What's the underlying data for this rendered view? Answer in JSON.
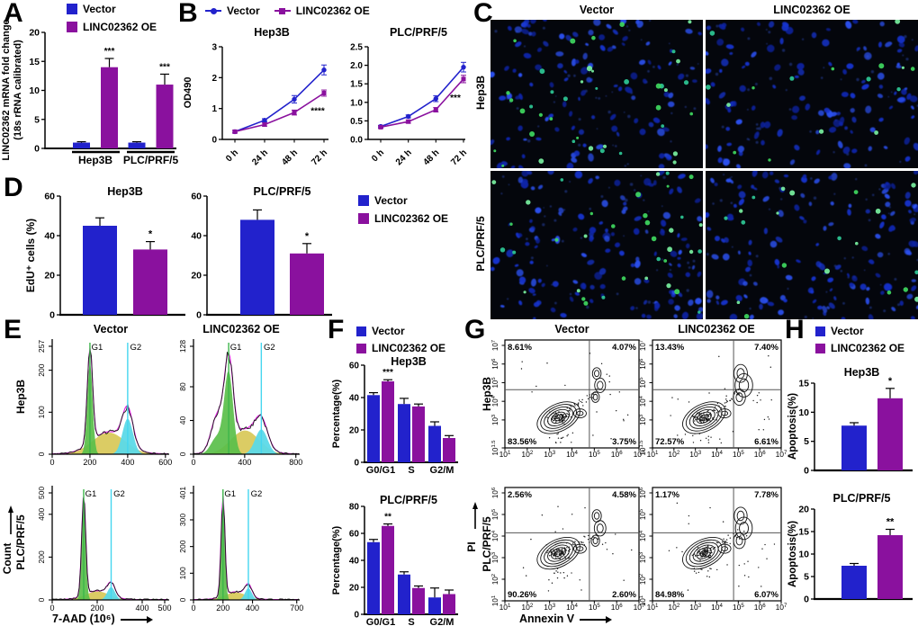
{
  "legend": {
    "vector": "Vector",
    "oe": "LINC02362 OE"
  },
  "colors": {
    "vector": "#2222cc",
    "oe": "#8a119e",
    "hist_g1_fill": "#5abf4a",
    "hist_s_fill": "#d9c95c",
    "hist_g2_fill": "#5cd9e8",
    "hist_model": "#e31ae3",
    "hist_trace": "#1a1a1a",
    "g1_marker_line": "#3cb54a",
    "g2_marker_line": "#45d6ef",
    "micro_bg": "#04060c",
    "nuclei": [
      "#1633cc",
      "#2b50ee",
      "#0e24a8",
      "#3a62f5"
    ],
    "edu": [
      "#3fd860",
      "#78f0a0",
      "#2ec896"
    ]
  },
  "panelA": {
    "label": "A",
    "ylabel1": "LINC02362 mRNA fold change",
    "ylabel2": "(18s rRNA calibrated)"
  },
  "panelB": {
    "label": "B",
    "ylabel": "OD490"
  },
  "panelC": {
    "label": "C",
    "cols": [
      "Vector",
      "LINC02362 OE"
    ],
    "rows": [
      "Hep3B",
      "PLC/PRF/5"
    ],
    "cells": [
      {
        "row": "Hep3B",
        "col": "Vector",
        "nuclei": 115,
        "edu": 40
      },
      {
        "row": "Hep3B",
        "col": "LINC02362 OE",
        "nuclei": 120,
        "edu": 16
      },
      {
        "row": "PLC/PRF/5",
        "col": "Vector",
        "nuclei": 135,
        "edu": 36
      },
      {
        "row": "PLC/PRF/5",
        "col": "LINC02362 OE",
        "nuclei": 140,
        "edu": 20
      }
    ]
  },
  "panelD": {
    "label": "D",
    "ylabel": "EdU⁺ cells (%)"
  },
  "panelE": {
    "label": "E",
    "cols": [
      "Vector",
      "LINC02362 OE"
    ],
    "rows": [
      "Hep3B",
      "PLC/PRF/5"
    ],
    "xlabel": "7-AAD (10⁶)",
    "ylabel": "Count",
    "phase_labels": [
      "G1",
      "G2"
    ]
  },
  "panelF": {
    "label": "F",
    "ylabel": "Percentage(%)"
  },
  "panelG": {
    "label": "G",
    "cols": [
      "Vector",
      "LINC02362 OE"
    ],
    "rows": [
      "Hep3B",
      "PLC/PRF/5"
    ],
    "xlabel": "Annexin V",
    "ylabel": "PI"
  },
  "panelH": {
    "label": "H",
    "ylabel": "Apoptosis(%)"
  },
  "chart_data": [
    {
      "id": "A-qpcr",
      "type": "bar",
      "panel": "A",
      "ylabel": "LINC02362 mRNA fold change (18s rRNA calibrated)",
      "categories": [
        "Hep3B",
        "PLC/PRF/5"
      ],
      "series": [
        {
          "name": "Vector",
          "values": [
            1,
            1
          ],
          "errors": [
            0.15,
            0.15
          ]
        },
        {
          "name": "LINC02362 OE",
          "values": [
            14,
            11
          ],
          "errors": [
            1.5,
            1.8
          ]
        }
      ],
      "ylim": [
        0,
        20
      ],
      "yticks": [
        0,
        5,
        10,
        15,
        20
      ],
      "significance": [
        {
          "category": "Hep3B",
          "category_index": 0,
          "series": "LINC02362 OE",
          "mark": "***"
        },
        {
          "category": "PLC/PRF/5",
          "category_index": 1,
          "series": "LINC02362 OE",
          "mark": "***"
        }
      ]
    },
    {
      "id": "B-hep3b",
      "type": "line",
      "panel": "B",
      "title": "Hep3B",
      "ylabel": "OD490",
      "x": [
        "0 h",
        "24 h",
        "48 h",
        "72 h"
      ],
      "series": [
        {
          "name": "Vector",
          "values": [
            0.25,
            0.62,
            1.3,
            2.25
          ],
          "errors": [
            0.04,
            0.05,
            0.12,
            0.16
          ]
        },
        {
          "name": "LINC02362 OE",
          "values": [
            0.25,
            0.48,
            0.87,
            1.5
          ],
          "errors": [
            0.04,
            0.05,
            0.08,
            0.1
          ]
        }
      ],
      "ylim": [
        0,
        3
      ],
      "yticks": [
        0,
        1,
        2,
        3
      ],
      "ytick_decimals": 0,
      "significance": {
        "mark": "****",
        "at": "72 h"
      }
    },
    {
      "id": "B-plc",
      "type": "line",
      "panel": "B",
      "title": "PLC/PRF/5",
      "ylabel": "OD490",
      "x": [
        "0 h",
        "24 h",
        "48 h",
        "72 h"
      ],
      "series": [
        {
          "name": "Vector",
          "values": [
            0.35,
            0.62,
            1.1,
            1.95
          ],
          "errors": [
            0.03,
            0.04,
            0.08,
            0.13
          ]
        },
        {
          "name": "LINC02362 OE",
          "values": [
            0.33,
            0.48,
            0.8,
            1.63
          ],
          "errors": [
            0.03,
            0.04,
            0.06,
            0.1
          ]
        }
      ],
      "ylim": [
        0,
        2.5
      ],
      "yticks": [
        0,
        0.5,
        1.0,
        1.5,
        2.0,
        2.5
      ],
      "ytick_decimals": 1,
      "significance": {
        "mark": "***",
        "at": "72 h"
      }
    },
    {
      "id": "D-hep3b",
      "type": "bar",
      "panel": "D",
      "title": "Hep3B",
      "ylabel": "EdU⁺ cells (%)",
      "categories": [
        "Vector",
        "LINC02362 OE"
      ],
      "values": [
        45,
        33
      ],
      "errors": [
        4,
        4
      ],
      "ylim": [
        0,
        60
      ],
      "yticks": [
        0,
        20,
        40,
        60
      ],
      "significance": [
        {
          "category": "LINC02362 OE",
          "index": 1,
          "mark": "*"
        }
      ]
    },
    {
      "id": "D-plc",
      "type": "bar",
      "panel": "D",
      "title": "PLC/PRF/5",
      "ylabel": "EdU⁺ cells (%)",
      "categories": [
        "Vector",
        "LINC02362 OE"
      ],
      "values": [
        48,
        31
      ],
      "errors": [
        5,
        5
      ],
      "ylim": [
        0,
        60
      ],
      "yticks": [
        0,
        20,
        40,
        60
      ],
      "significance": [
        {
          "category": "LINC02362 OE",
          "index": 1,
          "mark": "*"
        }
      ]
    },
    {
      "id": "E-cellcycle",
      "type": "histogram-grid",
      "panel": "E",
      "xlabel": "7-AAD (10⁶)",
      "ylabel": "Count",
      "cols": [
        "Vector",
        "LINC02362 OE"
      ],
      "rows": [
        "Hep3B",
        "PLC/PRF/5"
      ],
      "plots": [
        {
          "row": "Hep3B",
          "col": "Vector",
          "ymax": 257,
          "yticks": [
            0,
            100,
            200,
            257
          ],
          "xmax": 620,
          "xticks": [
            0,
            200,
            400,
            600
          ],
          "g1_x": 200,
          "g1_w": 14,
          "g1_h": 0.86,
          "s_h": 0.2,
          "g2_x": 400,
          "g2_w": 24,
          "g2_h": 0.33
        },
        {
          "row": "Hep3B",
          "col": "LINC02362 OE",
          "ymax": 128,
          "yticks": [
            0,
            40,
            80,
            128
          ],
          "xmax": 830,
          "xticks": [
            0,
            400,
            800
          ],
          "g1_x": 275,
          "g1_w": 34,
          "g1_h": 0.75,
          "s_h": 0.22,
          "g2_x": 530,
          "g2_w": 42,
          "g2_h": 0.23,
          "shoulder": 0.32,
          "shoulder_x": 185
        },
        {
          "row": "PLC/PRF/5",
          "col": "Vector",
          "ymax": 500,
          "yticks": [
            0,
            200,
            400,
            500
          ],
          "xmax": 520,
          "xticks": [
            0,
            200,
            400,
            500
          ],
          "g1_x": 140,
          "g1_w": 9,
          "g1_h": 0.92,
          "s_h": 0.08,
          "g2_x": 262,
          "g2_w": 15,
          "g2_h": 0.12
        },
        {
          "row": "PLC/PRF/5",
          "col": "LINC02362 OE",
          "ymax": 401,
          "yticks": [
            0,
            100,
            200,
            300,
            401
          ],
          "xmax": 720,
          "xticks": [
            0,
            200,
            400,
            700
          ],
          "g1_x": 200,
          "g1_w": 13,
          "g1_h": 0.92,
          "s_h": 0.07,
          "g2_x": 372,
          "g2_w": 20,
          "g2_h": 0.11
        }
      ]
    },
    {
      "id": "F-hep3b",
      "type": "bar",
      "panel": "F",
      "title": "Hep3B",
      "ylabel": "Percentage(%)",
      "categories": [
        "G0/G1",
        "S",
        "G2/M"
      ],
      "series": [
        {
          "name": "Vector",
          "values": [
            41.5,
            36,
            22.5
          ],
          "errors": [
            1.5,
            3.5,
            2.5
          ]
        },
        {
          "name": "LINC02362 OE",
          "values": [
            50,
            34.5,
            15
          ],
          "errors": [
            1,
            1.5,
            1.5
          ]
        }
      ],
      "ylim": [
        0,
        60
      ],
      "yticks": [
        0,
        20,
        40,
        60
      ],
      "significance": [
        {
          "category": "G0/G1",
          "category_index": 0,
          "series": "LINC02362 OE",
          "mark": "***"
        }
      ]
    },
    {
      "id": "F-plc",
      "type": "bar",
      "panel": "F",
      "title": "PLC/PRF/5",
      "ylabel": "Percentage(%)",
      "categories": [
        "G0/G1",
        "S",
        "G2/M"
      ],
      "series": [
        {
          "name": "Vector",
          "values": [
            53.5,
            29.5,
            12.5
          ],
          "errors": [
            2,
            2,
            7
          ]
        },
        {
          "name": "LINC02362 OE",
          "values": [
            65.5,
            19.5,
            15
          ],
          "errors": [
            1.5,
            1.5,
            3
          ]
        }
      ],
      "ylim": [
        0,
        80
      ],
      "yticks": [
        0,
        20,
        40,
        60,
        80
      ],
      "significance": [
        {
          "category": "G0/G1",
          "category_index": 0,
          "series": "LINC02362 OE",
          "mark": "**"
        }
      ]
    },
    {
      "id": "G-apoptosis",
      "type": "contour-grid",
      "panel": "G",
      "xlabel": "Annexin V",
      "ylabel": "PI",
      "cols": [
        "Vector",
        "LINC02362 OE"
      ],
      "rows": [
        "Hep3B",
        "PLC/PRF/5"
      ],
      "x_exponents": [
        1,
        2,
        3,
        4,
        5,
        6,
        7
      ],
      "plots": [
        {
          "row": "Hep3B",
          "col": "Vector",
          "y_exponents": [
            "1.5",
            "3",
            "4",
            "5",
            "6",
            "7"
          ],
          "quadrants": {
            "tl": "8.61%",
            "tr": "4.07%",
            "bl": "83.56%",
            "br": "3.75%"
          },
          "right_blob": 0.55
        },
        {
          "row": "Hep3B",
          "col": "LINC02362 OE",
          "y_exponents": [
            "1.5",
            "3",
            "4",
            "5",
            "6",
            "7"
          ],
          "quadrants": {
            "tl": "13.43%",
            "tr": "7.40%",
            "bl": "72.57%",
            "br": "6.61%"
          },
          "right_blob": 1.0
        },
        {
          "row": "PLC/PRF/5",
          "col": "Vector",
          "y_exponents": [
            "1",
            "2",
            "3",
            "4",
            "5",
            "6"
          ],
          "quadrants": {
            "tl": "2.56%",
            "tr": "4.58%",
            "bl": "90.26%",
            "br": "2.60%"
          },
          "right_blob": 0.6
        },
        {
          "row": "PLC/PRF/5",
          "col": "LINC02362 OE",
          "y_exponents": [
            "1",
            "2",
            "3",
            "4",
            "5",
            "6"
          ],
          "quadrants": {
            "tl": "1.17%",
            "tr": "7.78%",
            "bl": "84.98%",
            "br": "6.07%"
          },
          "right_blob": 0.95
        }
      ]
    },
    {
      "id": "H-hep3b",
      "type": "bar",
      "panel": "H",
      "title": "Hep3B",
      "ylabel": "Apoptosis(%)",
      "categories": [
        "Vector",
        "LINC02362 OE"
      ],
      "values": [
        7.7,
        12.4
      ],
      "errors": [
        0.5,
        1.7
      ],
      "ylim": [
        0,
        15
      ],
      "yticks": [
        0,
        5,
        10,
        15
      ],
      "significance": [
        {
          "category": "LINC02362 OE",
          "index": 1,
          "mark": "*"
        }
      ]
    },
    {
      "id": "H-plc",
      "type": "bar",
      "panel": "H",
      "title": "PLC/PRF/5",
      "ylabel": "Apoptosis(%)",
      "categories": [
        "Vector",
        "LINC02362 OE"
      ],
      "values": [
        7.4,
        14.2
      ],
      "errors": [
        0.5,
        1.3
      ],
      "ylim": [
        0,
        20
      ],
      "yticks": [
        0,
        5,
        10,
        15,
        20
      ],
      "significance": [
        {
          "category": "LINC02362 OE",
          "index": 1,
          "mark": "**"
        }
      ]
    }
  ]
}
